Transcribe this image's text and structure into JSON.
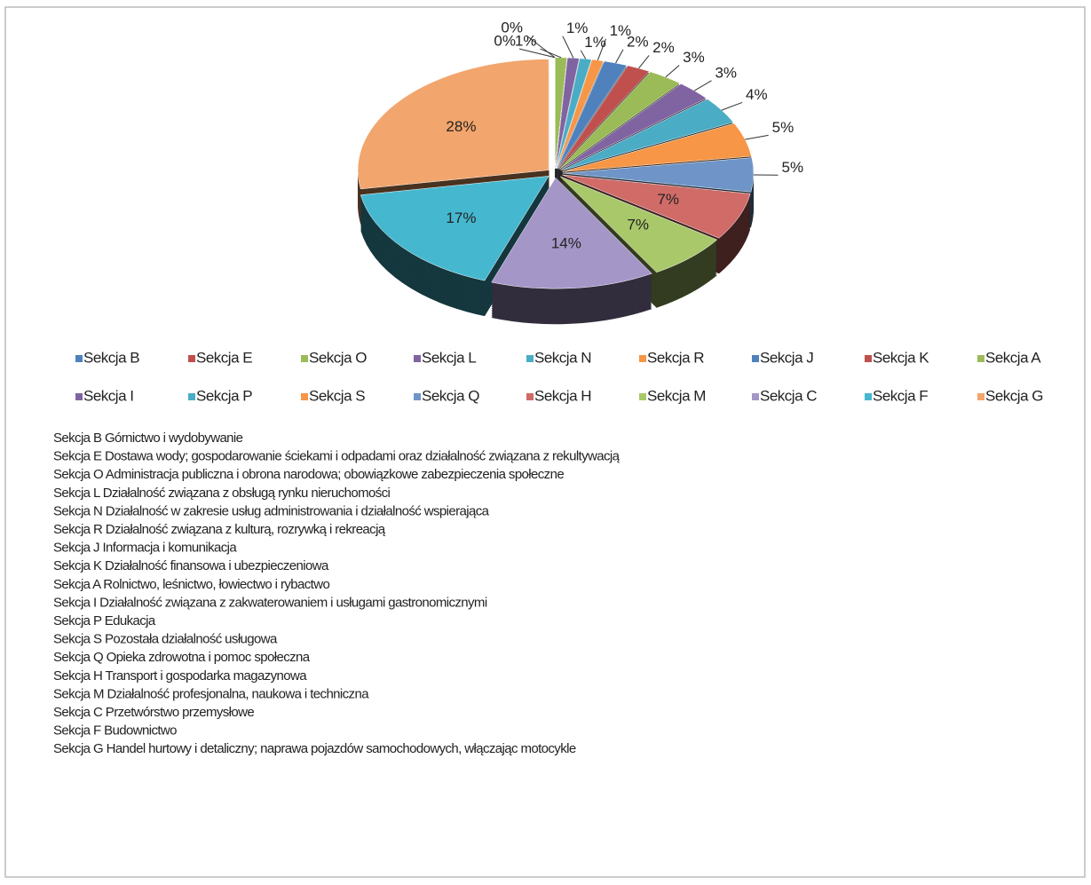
{
  "chart_data": {
    "type": "pie",
    "categories": [
      "Sekcja B",
      "Sekcja E",
      "Sekcja O",
      "Sekcja L",
      "Sekcja N",
      "Sekcja R",
      "Sekcja J",
      "Sekcja K",
      "Sekcja A",
      "Sekcja I",
      "Sekcja P",
      "Sekcja S",
      "Sekcja Q",
      "Sekcja H",
      "Sekcja M",
      "Sekcja C",
      "Sekcja F",
      "Sekcja G"
    ],
    "values": [
      0,
      0,
      1,
      1,
      1,
      1,
      2,
      2,
      3,
      3,
      4,
      5,
      5,
      7,
      7,
      14,
      17,
      28
    ],
    "value_labels": [
      "0%",
      "0%",
      "1%",
      "1%",
      "1%",
      "1%",
      "2%",
      "2%",
      "3%",
      "3%",
      "4%",
      "5%",
      "5%",
      "7%",
      "7%",
      "14%",
      "17%",
      "28%"
    ],
    "colors": [
      "#4f81bd",
      "#c0504d",
      "#9bbb59",
      "#8064a2",
      "#4bacc6",
      "#f79646",
      "#4f81bd",
      "#c0504d",
      "#9bbb59",
      "#8064a2",
      "#4bacc6",
      "#f79646",
      "#6f95c8",
      "#d06b68",
      "#a9c86a",
      "#a596c8",
      "#45b8d0",
      "#f2a56c"
    ],
    "notes": [
      "Sekcja B Górnictwo i wydobywanie",
      "Sekcja E Dostawa wody; gospodarowanie ściekami i odpadami oraz działalność związana z rekultywacją",
      "Sekcja O Administracja publiczna i obrona narodowa; obowiązkowe zabezpieczenia społeczne",
      "Sekcja L Działalność związana z obsługą rynku nieruchomości",
      "Sekcja N Działalność w zakresie usług administrowania i działalność wspierająca",
      "Sekcja R Działalność związana z kulturą, rozrywką i rekreacją",
      "Sekcja J Informacja i komunikacja",
      "Sekcja K Działalność finansowa i ubezpieczeniowa",
      "Sekcja A Rolnictwo, leśnictwo, łowiectwo i rybactwo",
      "Sekcja I Działalność związana z zakwaterowaniem i usługami gastronomicznymi",
      "Sekcja P Edukacja",
      "Sekcja S Pozostała działalność usługowa",
      "Sekcja Q Opieka zdrowotna i pomoc społeczna",
      "Sekcja H Transport i gospodarka magazynowa",
      "Sekcja M Działalność profesjonalna, naukowa i techniczna",
      "Sekcja C Przetwórstwo przemysłowe",
      "Sekcja F Budownictwo",
      "Sekcja G Handel hurtowy i detaliczny; naprawa pojazdów samochodowych, włączając motocykle"
    ]
  }
}
